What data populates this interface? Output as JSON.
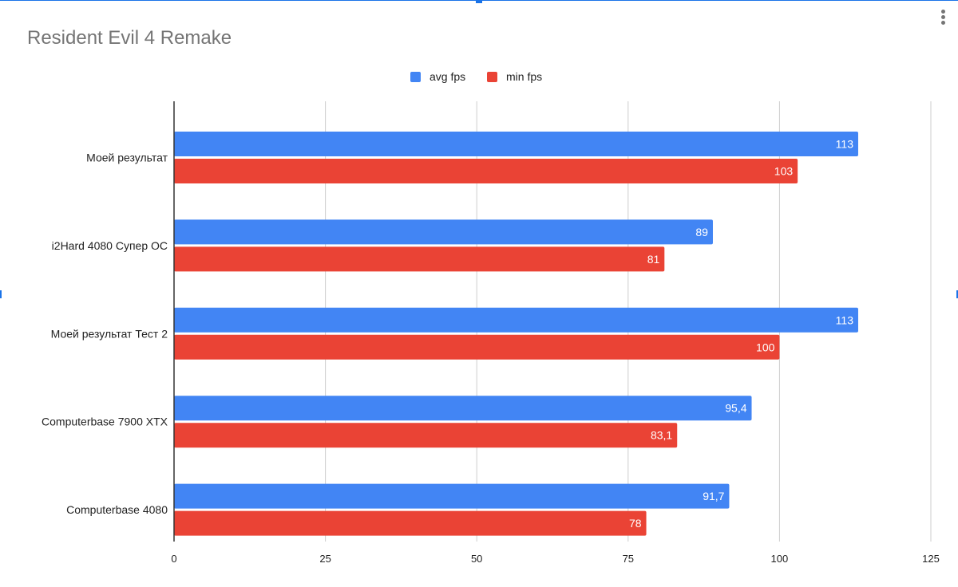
{
  "chart_data": {
    "type": "bar",
    "orientation": "horizontal",
    "title": "Resident Evil 4 Remake",
    "categories": [
      "Моей результат",
      "i2Hard 4080 Супер ОС",
      "Моей результат Тест 2",
      "Computerbase 7900 XTX",
      "Computerbase 4080"
    ],
    "series": [
      {
        "name": "avg fps",
        "color": "#4285f4",
        "values": [
          113,
          89,
          113,
          95.4,
          91.7
        ],
        "labels": [
          "113",
          "89",
          "113",
          "95,4",
          "91,7"
        ]
      },
      {
        "name": "min fps",
        "color": "#ea4335",
        "values": [
          103,
          81,
          100,
          83.1,
          78
        ],
        "labels": [
          "103",
          "81",
          "100",
          "83,1",
          "78"
        ]
      }
    ],
    "xlim": [
      0,
      125
    ],
    "xticks": [
      0,
      25,
      50,
      75,
      100,
      125
    ],
    "xtick_labels": [
      "0",
      "25",
      "50",
      "75",
      "100",
      "125"
    ],
    "grid": true,
    "legend": "top-center",
    "xlabel": "",
    "ylabel": ""
  },
  "ui": {
    "menu_icon": "more-vert-icon",
    "accent": "#1a73e8",
    "gridline_color": "#cccccc",
    "axis_color": "#333333"
  }
}
